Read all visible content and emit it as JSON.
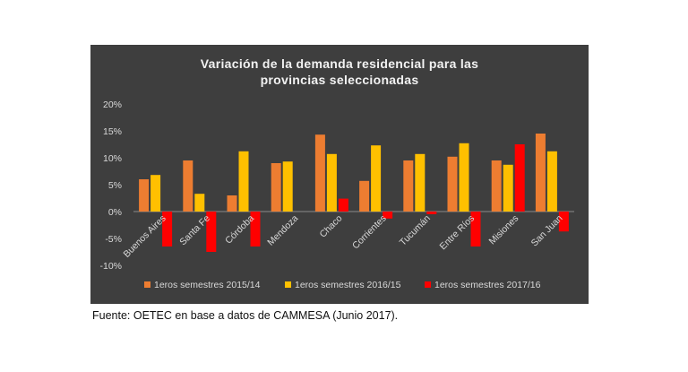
{
  "chart_data": {
    "type": "bar",
    "title_lines": [
      "Variación  de la demanda residencial  para las",
      "provincias seleccionadas"
    ],
    "categories": [
      "Buenos Aires",
      "Santa Fe",
      "Córdoba",
      "Mendoza",
      "Chaco",
      "Corrientes",
      "Tucumán",
      "Entre Ríos",
      "Misiones",
      "San Juan"
    ],
    "series": [
      {
        "name": "1eros semestres 2015/14",
        "color": "#ed7d31",
        "values": [
          6.0,
          9.5,
          3.0,
          9.0,
          14.3,
          5.7,
          9.5,
          10.2,
          9.5,
          14.5
        ]
      },
      {
        "name": "1eros semestres 2016/15",
        "color": "#ffc000",
        "values": [
          6.8,
          3.3,
          11.2,
          9.3,
          10.7,
          12.3,
          10.7,
          12.7,
          8.7,
          11.2
        ]
      },
      {
        "name": "1eros semestres 2017/16",
        "color": "#ff0000",
        "values": [
          -6.5,
          -7.5,
          -6.5,
          0,
          2.4,
          -1.3,
          -0.5,
          -6.5,
          12.5,
          -3.7
        ]
      }
    ],
    "ylim": [
      -10,
      20
    ],
    "yticks": [
      "-10%",
      "-5%",
      "0%",
      "5%",
      "10%",
      "15%",
      "20%"
    ],
    "grid": false,
    "legend_position": "bottom"
  },
  "footer": {
    "source": "Fuente: OETEC en base a datos de CAMMESA (Junio 2017)."
  }
}
